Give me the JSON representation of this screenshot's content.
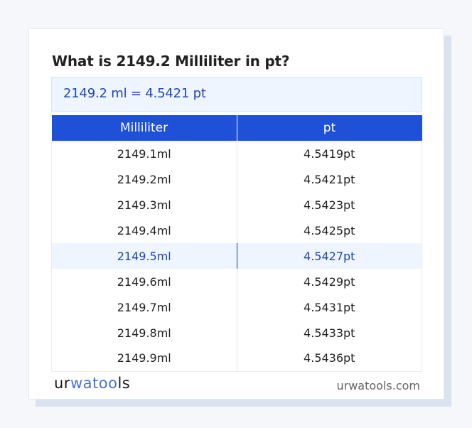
{
  "title": "What is 2149.2 Milliliter in pt?",
  "result": "2149.2 ml = 4.5421 pt",
  "table": {
    "headers": [
      "Milliliter",
      "pt"
    ],
    "rows": [
      [
        "2149.1ml",
        "4.5419pt"
      ],
      [
        "2149.2ml",
        "4.5421pt"
      ],
      [
        "2149.3ml",
        "4.5423pt"
      ],
      [
        "2149.4ml",
        "4.5425pt"
      ],
      [
        "2149.5ml",
        "4.5427pt"
      ],
      [
        "2149.6ml",
        "4.5429pt"
      ],
      [
        "2149.7ml",
        "4.5431pt"
      ],
      [
        "2149.8ml",
        "4.5433pt"
      ],
      [
        "2149.9ml",
        "4.5436pt"
      ]
    ],
    "highlighted_row": 4
  },
  "footer": {
    "logo": "urwatools",
    "logo_parts": [
      "ur",
      "wa",
      "too",
      "ls"
    ],
    "url": "urwatools.com"
  },
  "colors": {
    "accent": "#1e50d8",
    "highlight_bg": "#eef5fe",
    "highlight_text": "#2146b8"
  }
}
